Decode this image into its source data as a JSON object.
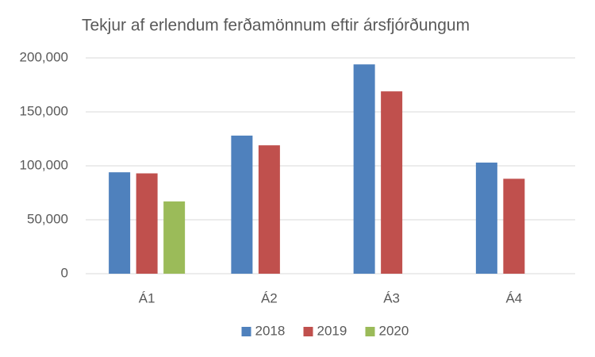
{
  "chart_data": {
    "type": "bar",
    "title": "Tekjur af erlendum ferðamönnum eftir ársfjórðungum",
    "categories": [
      "Á1",
      "Á2",
      "Á3",
      "Á4"
    ],
    "series": [
      {
        "name": "2018",
        "color": "#4f81bd",
        "values": [
          94000,
          128000,
          194000,
          103000
        ]
      },
      {
        "name": "2019",
        "color": "#c0504d",
        "values": [
          93000,
          119000,
          169000,
          88000
        ]
      },
      {
        "name": "2020",
        "color": "#9bbb59",
        "values": [
          67000,
          null,
          null,
          null
        ]
      }
    ],
    "ylim": [
      0,
      200000
    ],
    "yticks": [
      0,
      {
        "value": 50000,
        "label": "50,000"
      },
      {
        "value": 100000,
        "label": "100,000"
      },
      {
        "value": 150000,
        "label": "150,000"
      },
      {
        "value": 200000,
        "label": "200,000"
      }
    ],
    "grid": true,
    "legend": "bottom"
  }
}
